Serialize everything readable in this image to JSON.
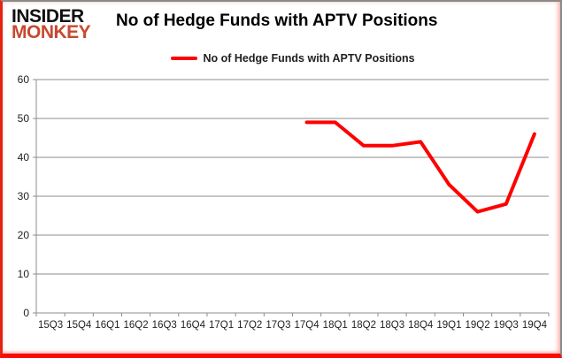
{
  "logo": {
    "line1": "INSIDER",
    "line2": "MONKEY",
    "color": "#c7492f"
  },
  "header": {
    "title": "No of Hedge Funds with APTV Positions"
  },
  "legend": {
    "label": "No of Hedge Funds with APTV Positions",
    "swatch_color": "#ff0000"
  },
  "colors": {
    "line": "#ff0000",
    "grid": "#8c8c8c",
    "axis": "#8c8c8c",
    "tick_text": "#1f1f1f"
  },
  "chart_data": {
    "type": "line",
    "title": "No of Hedge Funds with APTV Positions",
    "xlabel": "",
    "ylabel": "",
    "ylim": [
      0,
      60
    ],
    "yticks": [
      0,
      10,
      20,
      30,
      40,
      50,
      60
    ],
    "grid": true,
    "legend_position": "top-center",
    "categories": [
      "15Q3",
      "15Q4",
      "16Q1",
      "16Q2",
      "16Q3",
      "16Q4",
      "17Q1",
      "17Q2",
      "17Q3",
      "17Q4",
      "18Q1",
      "18Q2",
      "18Q3",
      "18Q4",
      "19Q1",
      "19Q2",
      "19Q3",
      "19Q4"
    ],
    "series": [
      {
        "name": "No of Hedge Funds with APTV Positions",
        "color": "#ff0000",
        "values": [
          null,
          null,
          null,
          null,
          null,
          null,
          null,
          null,
          null,
          49,
          49,
          43,
          43,
          44,
          33,
          26,
          28,
          46
        ]
      }
    ]
  }
}
